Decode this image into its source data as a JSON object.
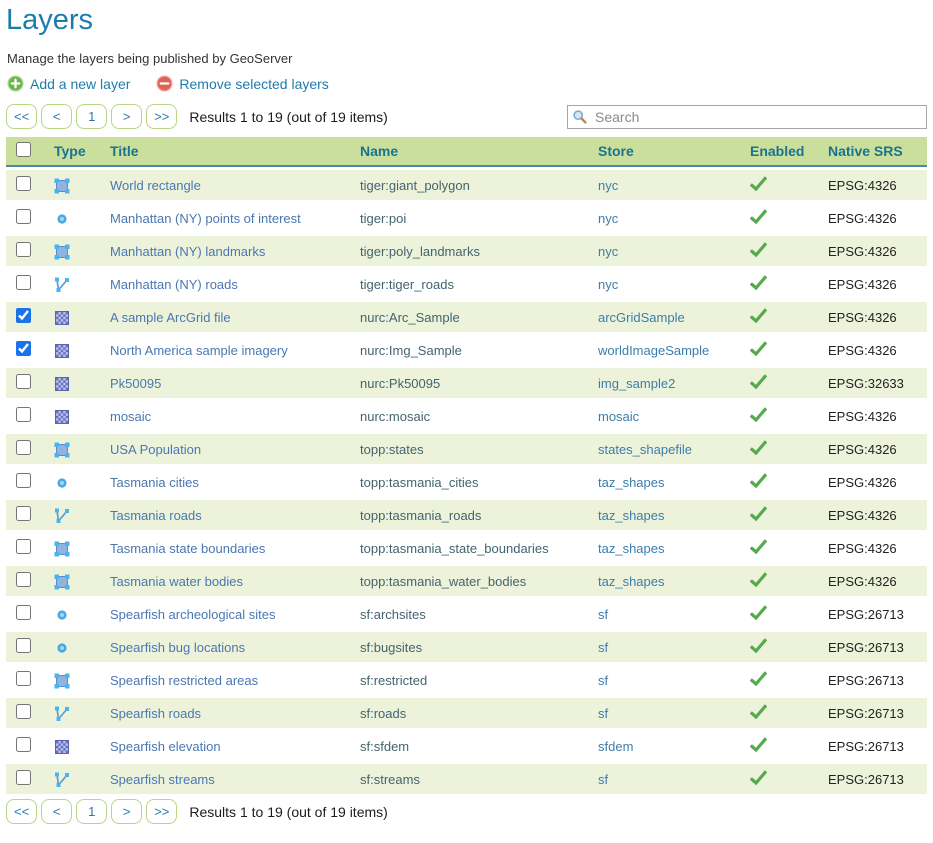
{
  "page": {
    "title": "Layers",
    "subtitle": "Manage the layers being published by GeoServer"
  },
  "actions": {
    "add_label": "Add a new layer",
    "remove_label": "Remove selected layers"
  },
  "pager": {
    "first": "<<",
    "prev": "<",
    "page": "1",
    "next": ">",
    "last": ">>",
    "results": "Results 1 to 19 (out of 19 items)"
  },
  "search": {
    "placeholder": "Search"
  },
  "table": {
    "columns": [
      "Type",
      "Title",
      "Name",
      "Store",
      "Enabled",
      "Native SRS"
    ],
    "rows": [
      {
        "checked": false,
        "type": "polygon",
        "title": "World rectangle",
        "name": "tiger:giant_polygon",
        "store": "nyc",
        "enabled": true,
        "srs": "EPSG:4326"
      },
      {
        "checked": false,
        "type": "point",
        "title": "Manhattan (NY) points of interest",
        "name": "tiger:poi",
        "store": "nyc",
        "enabled": true,
        "srs": "EPSG:4326"
      },
      {
        "checked": false,
        "type": "polygon",
        "title": "Manhattan (NY) landmarks",
        "name": "tiger:poly_landmarks",
        "store": "nyc",
        "enabled": true,
        "srs": "EPSG:4326"
      },
      {
        "checked": false,
        "type": "line",
        "title": "Manhattan (NY) roads",
        "name": "tiger:tiger_roads",
        "store": "nyc",
        "enabled": true,
        "srs": "EPSG:4326"
      },
      {
        "checked": true,
        "type": "raster",
        "title": "A sample ArcGrid file",
        "name": "nurc:Arc_Sample",
        "store": "arcGridSample",
        "enabled": true,
        "srs": "EPSG:4326"
      },
      {
        "checked": true,
        "type": "raster",
        "title": "North America sample imagery",
        "name": "nurc:Img_Sample",
        "store": "worldImageSample",
        "enabled": true,
        "srs": "EPSG:4326"
      },
      {
        "checked": false,
        "type": "raster",
        "title": "Pk50095",
        "name": "nurc:Pk50095",
        "store": "img_sample2",
        "enabled": true,
        "srs": "EPSG:32633"
      },
      {
        "checked": false,
        "type": "raster",
        "title": "mosaic",
        "name": "nurc:mosaic",
        "store": "mosaic",
        "enabled": true,
        "srs": "EPSG:4326"
      },
      {
        "checked": false,
        "type": "polygon",
        "title": "USA Population",
        "name": "topp:states",
        "store": "states_shapefile",
        "enabled": true,
        "srs": "EPSG:4326"
      },
      {
        "checked": false,
        "type": "point",
        "title": "Tasmania cities",
        "name": "topp:tasmania_cities",
        "store": "taz_shapes",
        "enabled": true,
        "srs": "EPSG:4326"
      },
      {
        "checked": false,
        "type": "line",
        "title": "Tasmania roads",
        "name": "topp:tasmania_roads",
        "store": "taz_shapes",
        "enabled": true,
        "srs": "EPSG:4326"
      },
      {
        "checked": false,
        "type": "polygon",
        "title": "Tasmania state boundaries",
        "name": "topp:tasmania_state_boundaries",
        "store": "taz_shapes",
        "enabled": true,
        "srs": "EPSG:4326"
      },
      {
        "checked": false,
        "type": "polygon",
        "title": "Tasmania water bodies",
        "name": "topp:tasmania_water_bodies",
        "store": "taz_shapes",
        "enabled": true,
        "srs": "EPSG:4326"
      },
      {
        "checked": false,
        "type": "point",
        "title": "Spearfish archeological sites",
        "name": "sf:archsites",
        "store": "sf",
        "enabled": true,
        "srs": "EPSG:26713"
      },
      {
        "checked": false,
        "type": "point",
        "title": "Spearfish bug locations",
        "name": "sf:bugsites",
        "store": "sf",
        "enabled": true,
        "srs": "EPSG:26713"
      },
      {
        "checked": false,
        "type": "polygon",
        "title": "Spearfish restricted areas",
        "name": "sf:restricted",
        "store": "sf",
        "enabled": true,
        "srs": "EPSG:26713"
      },
      {
        "checked": false,
        "type": "line",
        "title": "Spearfish roads",
        "name": "sf:roads",
        "store": "sf",
        "enabled": true,
        "srs": "EPSG:26713"
      },
      {
        "checked": false,
        "type": "raster",
        "title": "Spearfish elevation",
        "name": "sf:sfdem",
        "store": "sfdem",
        "enabled": true,
        "srs": "EPSG:26713"
      },
      {
        "checked": false,
        "type": "line",
        "title": "Spearfish streams",
        "name": "sf:streams",
        "store": "sf",
        "enabled": true,
        "srs": "EPSG:26713"
      }
    ]
  },
  "colors": {
    "heading_blue": "#1e7cac",
    "title_link_blue": "#4a77b2",
    "store_link_blue": "#3d7dab",
    "name_text": "#43646e",
    "header_bg_green": "#cbdf9d",
    "header_text_teal": "#19738f",
    "row_alt_green": "#edf3da",
    "header_underline_blue": "#4e86ae",
    "pager_border_green": "#b9d685",
    "pager_text_blue": "#2878ab",
    "enabled_check_green": "#57a94d",
    "checkbox_accent_blue": "#1a73e8",
    "add_icon_green": "#69b54d",
    "remove_icon_red": "#dd6258"
  }
}
